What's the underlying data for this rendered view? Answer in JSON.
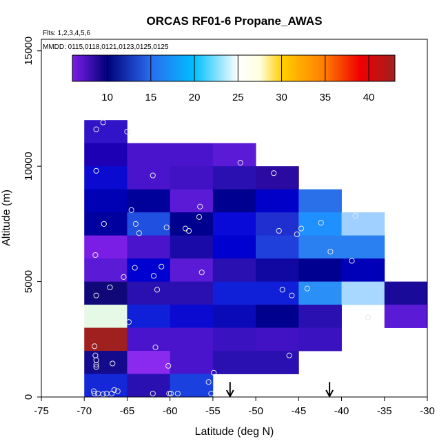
{
  "chart_data": {
    "type": "heatmap",
    "title": "ORCAS RF01-6 Propane_AWAS",
    "xlabel": "Latitude (deg N)",
    "ylabel": "Altitude (m)",
    "xlim": [
      -75,
      -30
    ],
    "ylim": [
      0,
      15500
    ],
    "x_ticks": [
      -75,
      -70,
      -65,
      -60,
      -55,
      -50,
      -45,
      -40,
      -35,
      -30
    ],
    "x_tick_labels": [
      "-75",
      "-70",
      "-65",
      "-60",
      "-55",
      "-50",
      "-45",
      "-40",
      "-35",
      "-30"
    ],
    "y_ticks": [
      0,
      5000,
      10000,
      15000
    ],
    "y_tick_labels": [
      "0",
      "5000",
      "10000",
      "15000"
    ],
    "flights_note": "Flts: 1,2,3,4,5,6",
    "dates_note": "MMDD: 0115,0118,0121,0123,0125,0125",
    "colorbar": {
      "min": 6,
      "max": 43,
      "ticks": [
        10,
        15,
        20,
        25,
        30,
        35,
        40
      ],
      "tick_labels": [
        "10",
        "15",
        "20",
        "25",
        "30",
        "35",
        "40"
      ],
      "stops": [
        {
          "value": 6,
          "color": "#7b1ee6"
        },
        {
          "value": 10,
          "color": "#00007a"
        },
        {
          "value": 15,
          "color": "#2a6cf0"
        },
        {
          "value": 20,
          "color": "#00c0ff"
        },
        {
          "value": 25,
          "color": "#ffffff"
        },
        {
          "value": 27.5,
          "color": "#ffffe0"
        },
        {
          "value": 30,
          "color": "#ffd000"
        },
        {
          "value": 35,
          "color": "#ff7a00"
        },
        {
          "value": 39,
          "color": "#f00000"
        },
        {
          "value": 43,
          "color": "#a02020"
        }
      ]
    },
    "bin_width_deg": 5,
    "bin_height_m": 1000,
    "cells": [
      {
        "lat": -70,
        "alt": 11000,
        "color": "#3214c8"
      },
      {
        "lat": -70,
        "alt": 10000,
        "color": "#1e00b4"
      },
      {
        "lat": -65,
        "alt": 10000,
        "color": "#4a14cc"
      },
      {
        "lat": -60,
        "alt": 10000,
        "color": "#4a14cc"
      },
      {
        "lat": -55,
        "alt": 10000,
        "color": "#5a1ad6"
      },
      {
        "lat": -70,
        "alt": 9000,
        "color": "#0a0ad0"
      },
      {
        "lat": -65,
        "alt": 9000,
        "color": "#4a14cc"
      },
      {
        "lat": -60,
        "alt": 9000,
        "color": "#4012c4"
      },
      {
        "lat": -55,
        "alt": 9000,
        "color": "#2a10b0"
      },
      {
        "lat": -50,
        "alt": 9000,
        "color": "#2a0aa0"
      },
      {
        "lat": -70,
        "alt": 8000,
        "color": "#0000b4"
      },
      {
        "lat": -65,
        "alt": 8000,
        "color": "#00009a"
      },
      {
        "lat": -60,
        "alt": 8000,
        "color": "#5a1ad6"
      },
      {
        "lat": -55,
        "alt": 8000,
        "color": "#000090"
      },
      {
        "lat": -50,
        "alt": 8000,
        "color": "#0000c8"
      },
      {
        "lat": -45,
        "alt": 8000,
        "color": "#2a70e8"
      },
      {
        "lat": -70,
        "alt": 7000,
        "color": "#00009e"
      },
      {
        "lat": -65,
        "alt": 7000,
        "color": "#2050e0"
      },
      {
        "lat": -60,
        "alt": 7000,
        "color": "#00008e"
      },
      {
        "lat": -55,
        "alt": 7000,
        "color": "#0a0ad8"
      },
      {
        "lat": -50,
        "alt": 7000,
        "color": "#2030d0"
      },
      {
        "lat": -45,
        "alt": 7000,
        "color": "#1f90ff"
      },
      {
        "lat": -40,
        "alt": 7000,
        "color": "#a0d0ff"
      },
      {
        "lat": -70,
        "alt": 6000,
        "color": "#7a1ee6"
      },
      {
        "lat": -65,
        "alt": 6000,
        "color": "#4a14cc"
      },
      {
        "lat": -60,
        "alt": 6000,
        "color": "#1a0aa8"
      },
      {
        "lat": -55,
        "alt": 6000,
        "color": "#0000d0"
      },
      {
        "lat": -50,
        "alt": 6000,
        "color": "#2040dc"
      },
      {
        "lat": -45,
        "alt": 6000,
        "color": "#2a80f0"
      },
      {
        "lat": -40,
        "alt": 6000,
        "color": "#2a80f0"
      },
      {
        "lat": -70,
        "alt": 5000,
        "color": "#5a1ad6"
      },
      {
        "lat": -65,
        "alt": 5000,
        "color": "#0000d0"
      },
      {
        "lat": -60,
        "alt": 5000,
        "color": "#5a1ad6"
      },
      {
        "lat": -55,
        "alt": 5000,
        "color": "#2a10b0"
      },
      {
        "lat": -50,
        "alt": 5000,
        "color": "#1008a0"
      },
      {
        "lat": -45,
        "alt": 5000,
        "color": "#000090"
      },
      {
        "lat": -40,
        "alt": 5000,
        "color": "#0000b8"
      },
      {
        "lat": -70,
        "alt": 4000,
        "color": "#100878"
      },
      {
        "lat": -65,
        "alt": 4000,
        "color": "#2a10b0"
      },
      {
        "lat": -60,
        "alt": 4000,
        "color": "#2a10b0"
      },
      {
        "lat": -55,
        "alt": 4000,
        "color": "#1020d8"
      },
      {
        "lat": -50,
        "alt": 4000,
        "color": "#1020d8"
      },
      {
        "lat": -45,
        "alt": 4000,
        "color": "#2a90f8"
      },
      {
        "lat": -40,
        "alt": 4000,
        "color": "#a8d8ff"
      },
      {
        "lat": -35,
        "alt": 4000,
        "color": "#1a0a9a"
      },
      {
        "lat": -70,
        "alt": 3000,
        "color": "#e6f8e6"
      },
      {
        "lat": -65,
        "alt": 3000,
        "color": "#1020d8"
      },
      {
        "lat": -60,
        "alt": 3000,
        "color": "#0a0ad0"
      },
      {
        "lat": -55,
        "alt": 3000,
        "color": "#0a0ab8"
      },
      {
        "lat": -50,
        "alt": 3000,
        "color": "#00008e"
      },
      {
        "lat": -45,
        "alt": 3000,
        "color": "#2a10b0"
      },
      {
        "lat": -35,
        "alt": 3000,
        "color": "#5a1ad6"
      },
      {
        "lat": -70,
        "alt": 2000,
        "color": "#a02020"
      },
      {
        "lat": -65,
        "alt": 2000,
        "color": "#4a14cc"
      },
      {
        "lat": -60,
        "alt": 2000,
        "color": "#4a14cc"
      },
      {
        "lat": -55,
        "alt": 2000,
        "color": "#3a12c0"
      },
      {
        "lat": -50,
        "alt": 2000,
        "color": "#4012c4"
      },
      {
        "lat": -45,
        "alt": 2000,
        "color": "#3a12c0"
      },
      {
        "lat": -70,
        "alt": 1000,
        "color": "#140a8c"
      },
      {
        "lat": -65,
        "alt": 1000,
        "color": "#8a2aee"
      },
      {
        "lat": -60,
        "alt": 1000,
        "color": "#4a14cc"
      },
      {
        "lat": -55,
        "alt": 1000,
        "color": "#2a10b0"
      },
      {
        "lat": -50,
        "alt": 1000,
        "color": "#2a10b0"
      },
      {
        "lat": -70,
        "alt": 0,
        "color": "#1428d8"
      },
      {
        "lat": -65,
        "alt": 0,
        "color": "#2a10b0"
      },
      {
        "lat": -60,
        "alt": 0,
        "color": "#1a40e0"
      }
    ],
    "samples": [
      {
        "lat": -67.8,
        "alt": 11900
      },
      {
        "lat": -68.6,
        "alt": 11600
      },
      {
        "lat": -65.0,
        "alt": 11500
      },
      {
        "lat": -51.8,
        "alt": 10150
      },
      {
        "lat": -68.6,
        "alt": 9800
      },
      {
        "lat": -62.0,
        "alt": 9600
      },
      {
        "lat": -47.9,
        "alt": 9700
      },
      {
        "lat": -56.5,
        "alt": 8250
      },
      {
        "lat": -64.5,
        "alt": 8100
      },
      {
        "lat": -56.6,
        "alt": 7800
      },
      {
        "lat": -67.7,
        "alt": 7500
      },
      {
        "lat": -64.0,
        "alt": 7500
      },
      {
        "lat": -60.4,
        "alt": 7350
      },
      {
        "lat": -58.2,
        "alt": 7300
      },
      {
        "lat": -57.8,
        "alt": 7200
      },
      {
        "lat": -63.6,
        "alt": 7100
      },
      {
        "lat": -42.4,
        "alt": 7550
      },
      {
        "lat": -38.4,
        "alt": 7850
      },
      {
        "lat": -44.7,
        "alt": 7300
      },
      {
        "lat": -47.3,
        "alt": 7200
      },
      {
        "lat": -45.2,
        "alt": 7050
      },
      {
        "lat": -68.7,
        "alt": 6150
      },
      {
        "lat": -41.3,
        "alt": 6300
      },
      {
        "lat": -38.8,
        "alt": 5900
      },
      {
        "lat": -61.0,
        "alt": 5650
      },
      {
        "lat": -64.1,
        "alt": 5600
      },
      {
        "lat": -56.3,
        "alt": 5400
      },
      {
        "lat": -61.9,
        "alt": 5250
      },
      {
        "lat": -65.4,
        "alt": 5200
      },
      {
        "lat": -67.0,
        "alt": 4750
      },
      {
        "lat": -61.5,
        "alt": 4650
      },
      {
        "lat": -46.9,
        "alt": 4650
      },
      {
        "lat": -44.0,
        "alt": 4700
      },
      {
        "lat": -68.6,
        "alt": 4400
      },
      {
        "lat": -45.8,
        "alt": 4400
      },
      {
        "lat": -36.9,
        "alt": 3450
      },
      {
        "lat": -64.8,
        "alt": 3250
      },
      {
        "lat": -68.8,
        "alt": 2200
      },
      {
        "lat": -61.7,
        "alt": 2150
      },
      {
        "lat": -68.7,
        "alt": 1800
      },
      {
        "lat": -68.6,
        "alt": 1600
      },
      {
        "lat": -46.1,
        "alt": 1800
      },
      {
        "lat": -68.6,
        "alt": 1400
      },
      {
        "lat": -66.7,
        "alt": 1450
      },
      {
        "lat": -60.2,
        "alt": 1350
      },
      {
        "lat": -54.9,
        "alt": 1050
      },
      {
        "lat": -68.6,
        "alt": 1300
      },
      {
        "lat": -55.5,
        "alt": 650
      },
      {
        "lat": -66.5,
        "alt": 300
      },
      {
        "lat": -66.1,
        "alt": 250
      },
      {
        "lat": -68.9,
        "alt": 250
      },
      {
        "lat": -67.4,
        "alt": 150
      },
      {
        "lat": -68.4,
        "alt": 150
      },
      {
        "lat": -66.8,
        "alt": 150
      },
      {
        "lat": -62.0,
        "alt": 150
      },
      {
        "lat": -60.1,
        "alt": 150
      },
      {
        "lat": -59.9,
        "alt": 150
      },
      {
        "lat": -59.1,
        "alt": 150
      },
      {
        "lat": -55.2,
        "alt": 150
      },
      {
        "lat": -68.8,
        "alt": 150
      },
      {
        "lat": -67.8,
        "alt": 120
      }
    ],
    "arrows": [
      {
        "lat": -53.0,
        "alt_top": 650
      },
      {
        "lat": -41.4,
        "alt_top": 650
      }
    ]
  }
}
